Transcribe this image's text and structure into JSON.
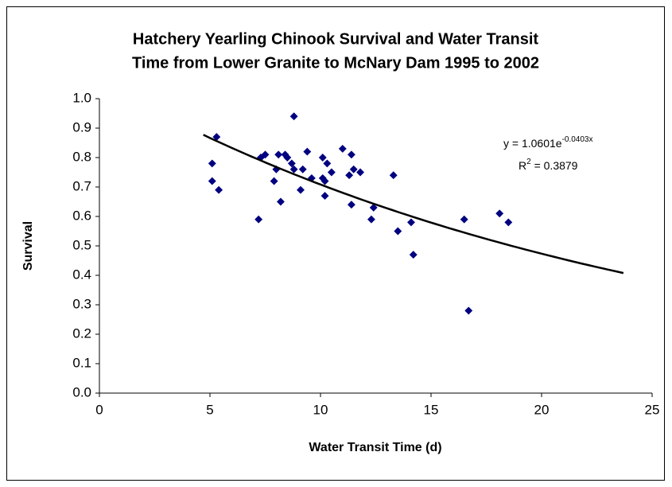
{
  "chart_data": {
    "type": "scatter",
    "title": [
      "Hatchery Yearling Chinook Survival and Water Transit",
      "Time from Lower Granite to McNary Dam 1995 to 2002"
    ],
    "x_label": "Water Transit Time (d)",
    "y_label": "Survival",
    "color": "#000080",
    "x": [
      5.1,
      5.1,
      5.3,
      5.4,
      7.2,
      7.3,
      7.5,
      7.9,
      8.0,
      8.1,
      8.2,
      8.4,
      8.5,
      8.7,
      8.8,
      8.8,
      9.1,
      9.2,
      9.4,
      9.6,
      10.1,
      10.1,
      10.2,
      10.2,
      10.3,
      10.5,
      11.0,
      11.3,
      11.4,
      11.4,
      11.5,
      11.8,
      12.3,
      12.4,
      13.3,
      13.5,
      14.1,
      14.2,
      16.5,
      16.7,
      18.1,
      18.5
    ],
    "values": [
      0.78,
      0.72,
      0.87,
      0.69,
      0.59,
      0.8,
      0.81,
      0.72,
      0.76,
      0.81,
      0.65,
      0.81,
      0.8,
      0.78,
      0.94,
      0.76,
      0.69,
      0.76,
      0.82,
      0.73,
      0.8,
      0.73,
      0.72,
      0.67,
      0.78,
      0.75,
      0.83,
      0.74,
      0.81,
      0.64,
      0.76,
      0.75,
      0.59,
      0.63,
      0.74,
      0.55,
      0.58,
      0.47,
      0.59,
      0.28,
      0.61,
      0.58
    ],
    "xlim": [
      0,
      25
    ],
    "xticks": [
      0,
      5,
      10,
      15,
      20,
      25
    ],
    "ylim": [
      0,
      1
    ],
    "yticks": [
      {
        "value": 0,
        "label": "0.0"
      },
      {
        "value": 0.1,
        "label": "0.1"
      },
      {
        "value": 0.2,
        "label": "0.2"
      },
      {
        "value": 0.3,
        "label": "0.3"
      },
      {
        "value": 0.4,
        "label": "0.4"
      },
      {
        "value": 0.5,
        "label": "0.5"
      },
      {
        "value": 0.6,
        "label": "0.6"
      },
      {
        "value": 0.7,
        "label": "0.7"
      },
      {
        "value": 0.8,
        "label": "0.8"
      },
      {
        "value": 0.9,
        "label": "0.9"
      },
      {
        "value": 1,
        "label": "1.0"
      }
    ],
    "grid": false,
    "trendline": {
      "a": 1.0601,
      "b": -0.0403,
      "x_start": 4.7,
      "x_end": 23.7,
      "color": "#000000",
      "equation_base": "y = 1.0601e",
      "equation_exponent": "-0.0403x",
      "r2_base": "R",
      "r2_exponent": "2",
      "r2_value": " = 0.3879"
    }
  }
}
